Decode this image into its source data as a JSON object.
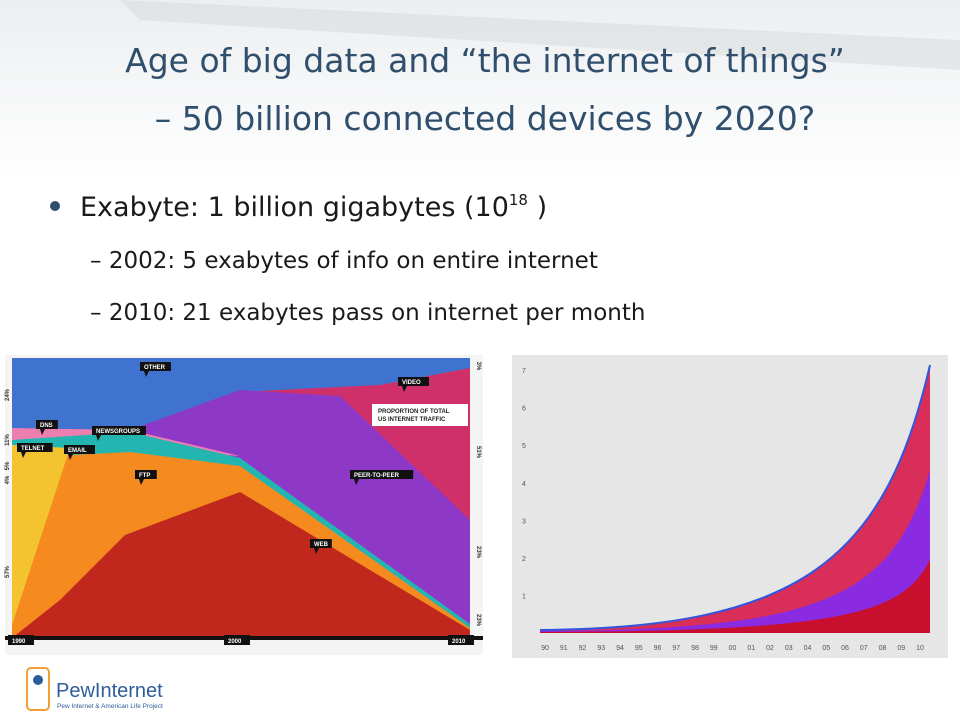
{
  "slide": {
    "title": [
      "Age of big data  and “the internet of things”",
      "– 50 billion connected devices by 2020?"
    ],
    "bullet": {
      "text": "Exabyte: 1 billion gigabytes (10",
      "superscript": "18",
      "close": " )"
    },
    "sub_bullets": [
      "2002: 5 exabytes of info on entire internet",
      "2010: 21 exabytes pass on internet per month"
    ],
    "left_chart": {
      "callouts": [
        "OTHER",
        "VIDEO",
        "DNS",
        "NEWSGROUPS",
        "TELNET",
        "EMAIL",
        "FTP",
        "PEER-TO-PEER",
        "WEB"
      ],
      "legend": [
        "PROPORTION OF TOTAL",
        "US INTERNET TRAFFIC"
      ],
      "years": [
        "1990",
        "2000",
        "2010"
      ],
      "left_labels": [
        "24%",
        "11%",
        "5%",
        "4%",
        "57%"
      ],
      "right_labels": [
        "3%",
        "51%",
        "23%",
        "23%"
      ]
    },
    "right_chart": {
      "yticks": [
        "7",
        "6",
        "5",
        "4",
        "3",
        "2",
        "1"
      ],
      "xticks": [
        "90",
        "91",
        "92",
        "93",
        "94",
        "95",
        "96",
        "97",
        "98",
        "99",
        "00",
        "01",
        "02",
        "03",
        "04",
        "05",
        "06",
        "07",
        "08",
        "09",
        "10"
      ]
    },
    "logo": {
      "name": "PewInternet",
      "tagline": "Pew Internet & American Life Project"
    }
  }
}
